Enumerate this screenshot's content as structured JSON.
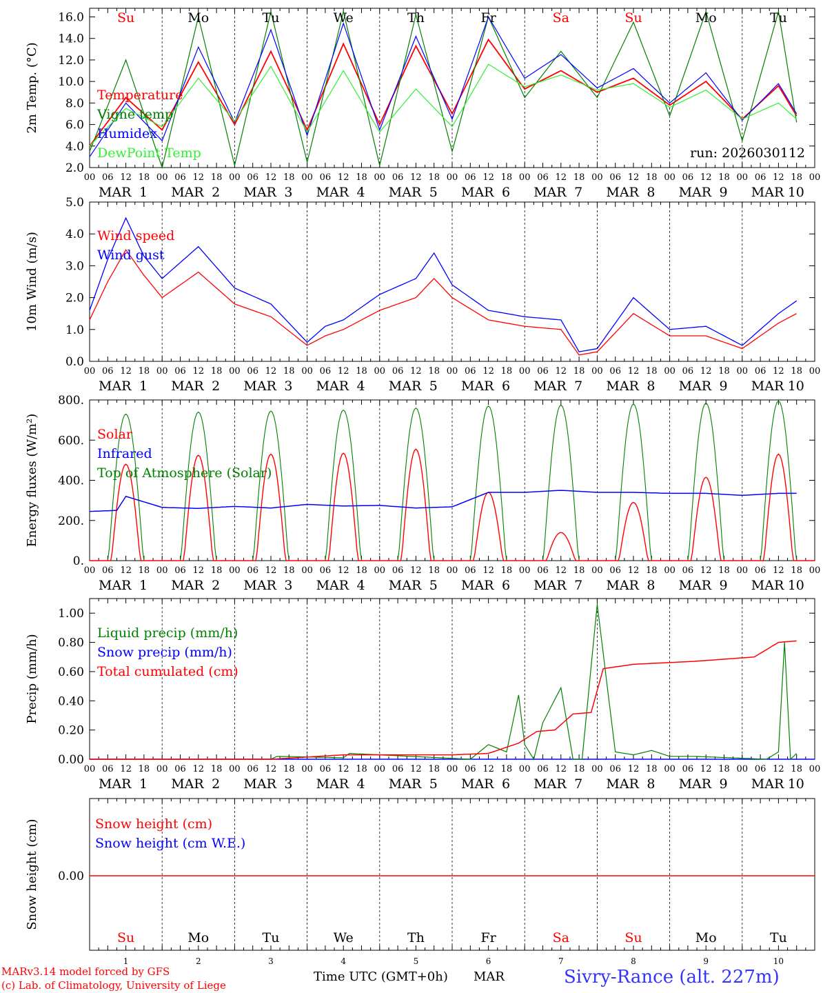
{
  "chart_data": [
    {
      "type": "line",
      "ylabel": "2m Temp. (°C)",
      "ylim": [
        2.0,
        16.8
      ],
      "yticks": [
        "2.0",
        "4.0",
        "6.0",
        "8.0",
        "10.0",
        "12.0",
        "14.0",
        "16.0"
      ],
      "run_label": "run: 2026030112",
      "x_hours": [
        0,
        12,
        24,
        36,
        48,
        60,
        72,
        84,
        96,
        108,
        120,
        132,
        144,
        156,
        168,
        180,
        192,
        204,
        216,
        228,
        234
      ],
      "series": [
        {
          "name": "Temperature",
          "color": "#ff0000",
          "values": [
            4.0,
            8.5,
            5.5,
            11.8,
            6.0,
            12.8,
            5.5,
            13.5,
            6.0,
            13.3,
            7.0,
            13.9,
            9.3,
            11.0,
            9.0,
            10.3,
            7.8,
            10.0,
            6.5,
            9.6,
            6.8
          ]
        },
        {
          "name": "Vigne temp",
          "color": "#008000",
          "values": [
            3.5,
            12.0,
            2.0,
            16.0,
            2.2,
            16.5,
            2.5,
            16.5,
            2.2,
            16.2,
            3.5,
            16.0,
            8.5,
            12.8,
            8.5,
            15.5,
            6.8,
            16.5,
            4.5,
            16.5,
            6.2
          ]
        },
        {
          "name": "Humidex",
          "color": "#0000ff",
          "values": [
            3.0,
            8.0,
            4.5,
            13.2,
            6.2,
            14.8,
            5.0,
            15.4,
            5.5,
            14.2,
            6.5,
            16.0,
            10.3,
            12.5,
            9.4,
            11.2,
            8.0,
            10.8,
            6.4,
            9.8,
            7.0
          ]
        },
        {
          "name": "DewPoint Temp",
          "color": "#33ee33",
          "values": [
            4.0,
            7.5,
            5.8,
            10.3,
            6.3,
            11.4,
            5.3,
            11.0,
            5.3,
            9.3,
            5.8,
            11.6,
            9.5,
            10.6,
            9.2,
            9.8,
            7.6,
            9.2,
            6.5,
            8.0,
            6.5
          ]
        }
      ]
    },
    {
      "type": "line",
      "ylabel": "10m Wind (m/s)",
      "ylim": [
        0.0,
        5.0
      ],
      "yticks": [
        "0.0",
        "1.0",
        "2.0",
        "3.0",
        "4.0",
        "5.0"
      ],
      "x_hours": [
        0,
        6,
        12,
        18,
        24,
        36,
        48,
        60,
        72,
        78,
        84,
        96,
        108,
        114,
        120,
        132,
        144,
        156,
        162,
        168,
        180,
        192,
        204,
        216,
        228,
        234
      ],
      "series": [
        {
          "name": "Wind speed",
          "color": "#ff0000",
          "values": [
            1.3,
            2.5,
            3.5,
            2.7,
            2.0,
            2.8,
            1.8,
            1.4,
            0.5,
            0.8,
            1.0,
            1.6,
            2.0,
            2.6,
            2.0,
            1.3,
            1.1,
            1.0,
            0.2,
            0.3,
            1.5,
            0.8,
            0.8,
            0.4,
            1.2,
            1.5
          ]
        },
        {
          "name": "Wind gust",
          "color": "#0000ff",
          "values": [
            1.6,
            3.2,
            4.5,
            3.3,
            2.6,
            3.6,
            2.3,
            1.8,
            0.6,
            1.1,
            1.3,
            2.1,
            2.6,
            3.4,
            2.4,
            1.6,
            1.4,
            1.3,
            0.3,
            0.4,
            2.0,
            1.0,
            1.1,
            0.5,
            1.5,
            1.9
          ]
        }
      ]
    },
    {
      "type": "line",
      "ylabel": "Energy fluxes (W/m²)",
      "ylim": [
        0,
        800
      ],
      "yticks": [
        "0.",
        "200.",
        "400.",
        "600.",
        "800."
      ],
      "solar_peaks": [
        480,
        525,
        530,
        535,
        555,
        340,
        140,
        290,
        415,
        530
      ],
      "toa_peaks": [
        730,
        740,
        745,
        750,
        760,
        770,
        775,
        780,
        785,
        795
      ],
      "ir_x_hours": [
        0,
        9,
        12,
        24,
        36,
        48,
        60,
        72,
        84,
        96,
        108,
        120,
        132,
        144,
        156,
        168,
        180,
        192,
        204,
        216,
        228,
        234
      ],
      "ir_values": [
        245,
        250,
        320,
        265,
        260,
        270,
        262,
        280,
        272,
        275,
        262,
        268,
        340,
        340,
        350,
        340,
        340,
        335,
        335,
        325,
        335,
        335
      ],
      "series": [
        {
          "name": "Solar",
          "color": "#ff0000"
        },
        {
          "name": "Infrared",
          "color": "#0000ff"
        },
        {
          "name": "Top of Atmosphere (Solar)",
          "color": "#008000"
        }
      ]
    },
    {
      "type": "line",
      "ylabel": "Precip (mm/h)",
      "ylim": [
        0.0,
        1.1
      ],
      "yticks": [
        "0.00",
        "0.20",
        "0.40",
        "0.60",
        "0.80",
        "1.00"
      ],
      "liquid_x_hours": [
        0,
        60,
        62,
        84,
        86,
        126,
        132,
        138,
        142,
        144,
        147,
        150,
        156,
        160,
        163,
        168,
        174,
        180,
        186,
        192,
        200,
        224,
        228,
        230,
        232,
        234
      ],
      "liquid_values": [
        0,
        0,
        0.02,
        0.01,
        0.04,
        0.0,
        0.1,
        0.05,
        0.44,
        0.1,
        0.0,
        0.25,
        0.49,
        0.0,
        0.0,
        1.06,
        0.05,
        0.03,
        0.06,
        0.02,
        0.02,
        0.0,
        0.05,
        0.8,
        0.0,
        0.04
      ],
      "cum_x_hours": [
        0,
        60,
        84,
        120,
        132,
        142,
        148,
        154,
        160,
        166,
        170,
        180,
        200,
        220,
        228,
        234
      ],
      "cum_values": [
        0,
        0.0,
        0.03,
        0.03,
        0.04,
        0.11,
        0.19,
        0.2,
        0.31,
        0.32,
        0.62,
        0.65,
        0.67,
        0.7,
        0.8,
        0.81
      ],
      "series": [
        {
          "name": "Liquid precip (mm/h)",
          "color": "#008000"
        },
        {
          "name": "Snow precip (mm/h)",
          "color": "#0000ff"
        },
        {
          "name": "Total cumulated (cm)",
          "color": "#ff0000"
        }
      ]
    },
    {
      "type": "line",
      "ylabel": "Snow height (cm)",
      "yticks": [
        "0.00"
      ],
      "series": [
        {
          "name": "Snow height (cm)",
          "color": "#ff0000",
          "values": [
            0.0,
            0.0
          ]
        },
        {
          "name": "Snow height (cm W.E.)",
          "color": "#0000ff"
        }
      ]
    }
  ],
  "days": [
    {
      "day": "Su",
      "date": "1",
      "color": "#ff0000"
    },
    {
      "day": "Mo",
      "date": "2",
      "color": "#000000"
    },
    {
      "day": "Tu",
      "date": "3",
      "color": "#000000"
    },
    {
      "day": "We",
      "date": "4",
      "color": "#000000"
    },
    {
      "day": "Th",
      "date": "5",
      "color": "#000000"
    },
    {
      "day": "Fr",
      "date": "6",
      "color": "#000000"
    },
    {
      "day": "Sa",
      "date": "7",
      "color": "#ff0000"
    },
    {
      "day": "Su",
      "date": "8",
      "color": "#ff0000"
    },
    {
      "day": "Mo",
      "date": "9",
      "color": "#000000"
    },
    {
      "day": "Tu",
      "date": "10",
      "color": "#000000"
    }
  ],
  "hour_ticks": [
    "00",
    "06",
    "12",
    "18"
  ],
  "final_hour_tick": "00",
  "month_label": "MAR",
  "x_axis_label": "Time UTC (GMT+0h)",
  "x_axis_month": "MAR",
  "footer": {
    "model_line": "MARv3.14 model forced by GFS",
    "lab_line": "(c) Lab. of Climatology, University of Liege",
    "station": "Sivry-Rance (alt. 227m)"
  }
}
